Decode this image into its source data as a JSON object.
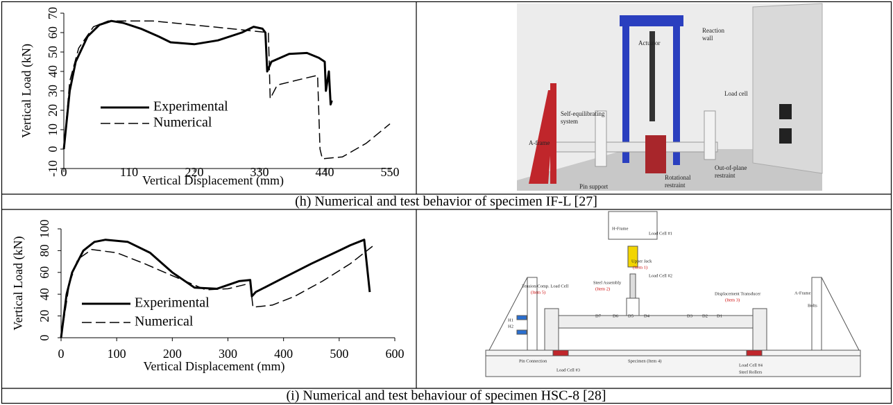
{
  "chart_data": [
    {
      "type": "line",
      "x_label": "Vertical Displacement (mm)",
      "y_label": "Vertical Load (kN)",
      "xlim": [
        0,
        550
      ],
      "ylim": [
        -10,
        70
      ],
      "xticks": [
        0,
        110,
        220,
        330,
        440,
        550
      ],
      "yticks": [
        -10,
        0,
        10,
        20,
        30,
        40,
        50,
        60,
        70
      ],
      "legend": "center-left",
      "series": [
        {
          "name": "Experimental",
          "color": "#000000",
          "line_style": "solid",
          "x": [
            0,
            10,
            20,
            40,
            60,
            80,
            100,
            130,
            160,
            180,
            220,
            260,
            300,
            320,
            335,
            340,
            343,
            350,
            380,
            410,
            430,
            440,
            442,
            447,
            450,
            452
          ],
          "values": [
            0,
            30,
            45,
            58,
            64,
            66,
            65,
            62,
            58,
            55,
            54,
            56,
            60,
            63,
            62,
            60,
            40,
            45,
            49,
            49.5,
            47,
            45,
            30,
            40,
            23,
            25
          ]
        },
        {
          "name": "Numerical",
          "color": "#000000",
          "line_style": "dashed",
          "x": [
            0,
            10,
            25,
            50,
            75,
            150,
            250,
            345,
            348,
            360,
            400,
            428,
            432,
            436,
            470,
            510,
            550
          ],
          "values": [
            0,
            35,
            52,
            63,
            66,
            66,
            63,
            60,
            26,
            33,
            36,
            38,
            0,
            -5,
            -4,
            3,
            13
          ]
        }
      ]
    },
    {
      "type": "line",
      "x_label": "Vertical Displacement (mm)",
      "y_label": "Vertical Load (kN)",
      "xlim": [
        0,
        600
      ],
      "ylim": [
        0,
        100
      ],
      "xticks": [
        0,
        100,
        200,
        300,
        400,
        500,
        600
      ],
      "yticks": [
        0,
        20,
        40,
        60,
        80,
        100
      ],
      "legend": "lower-left",
      "series": [
        {
          "name": "Experimental",
          "color": "#000000",
          "line_style": "solid",
          "x": [
            0,
            10,
            20,
            40,
            60,
            80,
            120,
            160,
            200,
            240,
            280,
            320,
            340,
            343,
            350,
            400,
            450,
            500,
            520,
            545,
            555
          ],
          "values": [
            0,
            40,
            60,
            80,
            88,
            90,
            88,
            78,
            60,
            46,
            45,
            52,
            53,
            38,
            42,
            55,
            68,
            80,
            85,
            90,
            42
          ]
        },
        {
          "name": "Numerical",
          "color": "#000000",
          "line_style": "dashed",
          "x": [
            0,
            15,
            30,
            55,
            100,
            150,
            200,
            260,
            300,
            340,
            345,
            380,
            420,
            470,
            520,
            560
          ],
          "values": [
            0,
            50,
            72,
            81,
            78,
            68,
            57,
            44,
            45,
            50,
            28,
            30,
            38,
            52,
            68,
            84
          ]
        }
      ]
    }
  ],
  "captions": [
    "(h) Numerical and test behavior of specimen IF-L [27]",
    "(i) Numerical and test behaviour of specimen HSC-8 [28]"
  ],
  "figures": [
    {
      "labels": [
        {
          "lines": [
            "Reaction",
            "wall"
          ]
        },
        {
          "lines": [
            "Actuator"
          ]
        },
        {
          "lines": [
            "Load cell"
          ]
        },
        {
          "lines": [
            "Self-equilibrating",
            "system"
          ]
        },
        {
          "lines": [
            "A-frame"
          ]
        },
        {
          "lines": [
            "Pin support"
          ]
        },
        {
          "lines": [
            "Rotational",
            "restraint"
          ]
        },
        {
          "lines": [
            "Out-of-plane",
            "restraint"
          ]
        }
      ]
    },
    {
      "labels": [
        {
          "lines": [
            "H-Frame"
          ]
        },
        {
          "lines": [
            "Load Cell #1"
          ]
        },
        {
          "lines": [
            "Upper Jack"
          ]
        },
        {
          "lines": [
            "(Item 1)"
          ],
          "color": "#cc0000"
        },
        {
          "lines": [
            "Load Cell #2"
          ]
        },
        {
          "lines": [
            "Steel Assembly"
          ]
        },
        {
          "lines": [
            "(Item 2)"
          ],
          "color": "#cc0000"
        },
        {
          "lines": [
            "Tension/Comp. Load Cell"
          ]
        },
        {
          "lines": [
            "(Item 5)"
          ],
          "color": "#cc0000"
        },
        {
          "lines": [
            "Displacement Transducer"
          ]
        },
        {
          "lines": [
            "(Item 3)"
          ],
          "color": "#cc0000"
        },
        {
          "lines": [
            "A-Frame"
          ]
        },
        {
          "lines": [
            "Bolts"
          ]
        },
        {
          "lines": [
            "D7"
          ]
        },
        {
          "lines": [
            "D6"
          ]
        },
        {
          "lines": [
            "D5"
          ]
        },
        {
          "lines": [
            "D4"
          ]
        },
        {
          "lines": [
            "D3"
          ]
        },
        {
          "lines": [
            "D2"
          ]
        },
        {
          "lines": [
            "D1"
          ]
        },
        {
          "lines": [
            "H1"
          ]
        },
        {
          "lines": [
            "H2"
          ]
        },
        {
          "lines": [
            "Pin Connection"
          ]
        },
        {
          "lines": [
            "Load Cell #3"
          ]
        },
        {
          "lines": [
            "Specimen (Item 4)"
          ]
        },
        {
          "lines": [
            "Load Cell #4"
          ]
        },
        {
          "lines": [
            "Steel Rollers"
          ]
        }
      ]
    }
  ]
}
